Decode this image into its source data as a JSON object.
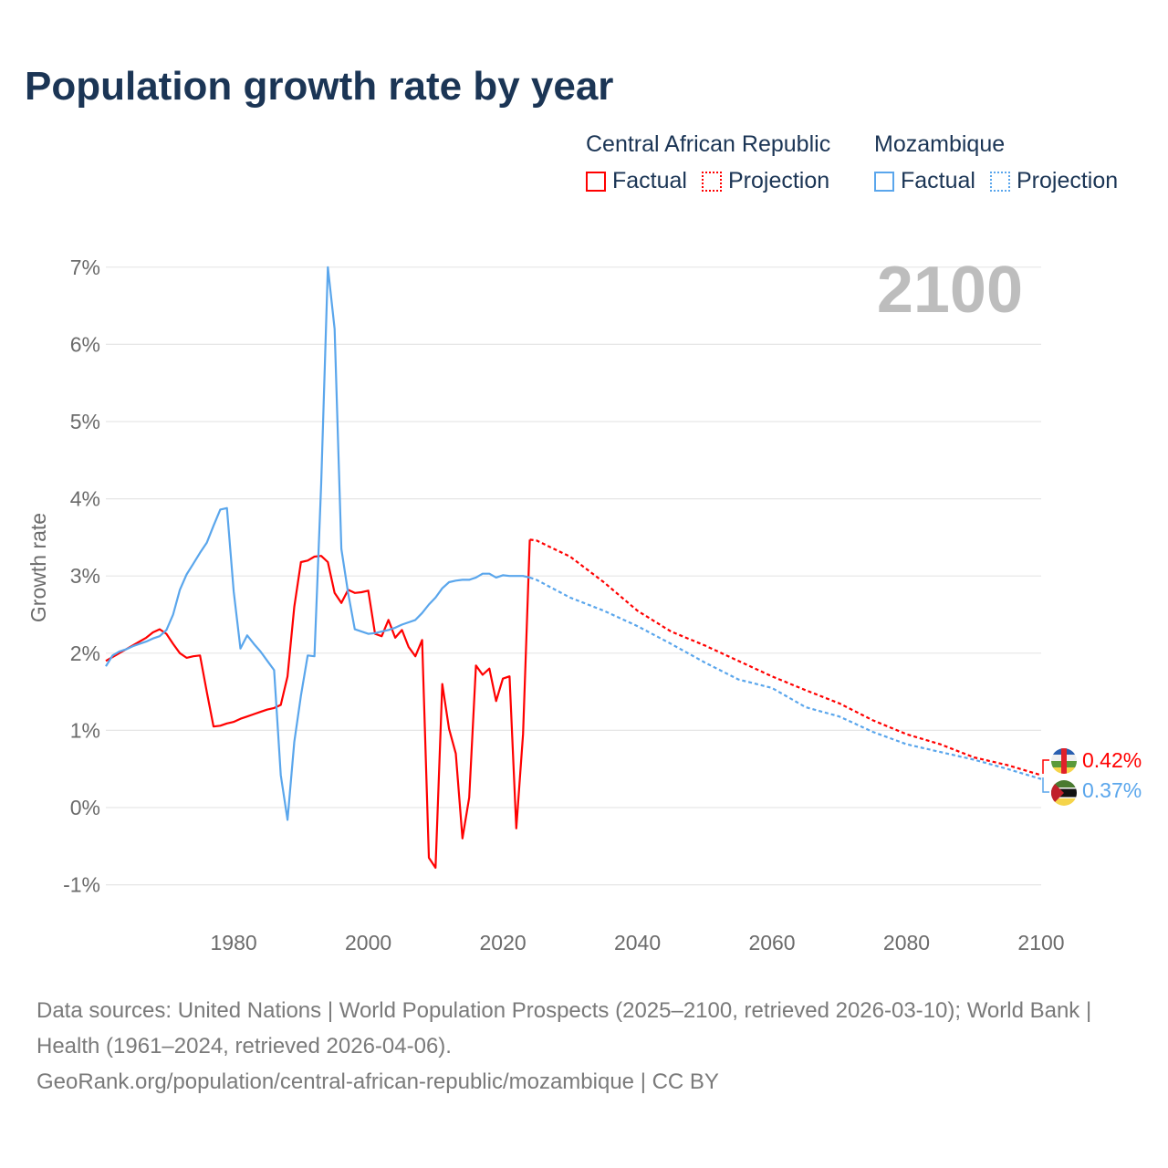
{
  "title": "Population growth rate by year",
  "legend": {
    "groups": [
      {
        "name": "Central African Republic",
        "color": "#ff0000",
        "factual": "Factual",
        "projection": "Projection"
      },
      {
        "name": "Mozambique",
        "color": "#5aa6ec",
        "factual": "Factual",
        "projection": "Projection"
      }
    ]
  },
  "year_badge": "2100",
  "end_labels": {
    "car": "0.42%",
    "moz": "0.37%"
  },
  "footer": {
    "sources": "Data sources: United Nations | World Population Prospects (2025–2100, retrieved 2026-03-10); World Bank | Health (1961–2024, retrieved 2026-04-06).",
    "link": "GeoRank.org/population/central-african-republic/mozambique | CC BY"
  },
  "chart_data": {
    "type": "line",
    "title": "Population growth rate by year",
    "xlabel": "",
    "ylabel": "Growth rate",
    "xlim": [
      1961,
      2100
    ],
    "ylim": [
      -1,
      7
    ],
    "xticks": [
      1980,
      2000,
      2020,
      2040,
      2060,
      2080,
      2100
    ],
    "xtick_labels": [
      "1980",
      "2000",
      "2020",
      "2040",
      "2060",
      "2080",
      "2100"
    ],
    "yticks": [
      -1,
      0,
      1,
      2,
      3,
      4,
      5,
      6,
      7
    ],
    "ytick_labels": [
      "-1%",
      "0%",
      "1%",
      "2%",
      "3%",
      "4%",
      "5%",
      "6%",
      "7%"
    ],
    "grid": true,
    "legend_position": "top-right",
    "series": [
      {
        "name": "Central African Republic – Factual",
        "color": "#ff0000",
        "style": "solid",
        "x": [
          1961,
          1962,
          1963,
          1964,
          1965,
          1966,
          1967,
          1968,
          1969,
          1970,
          1971,
          1972,
          1973,
          1974,
          1975,
          1976,
          1977,
          1978,
          1979,
          1980,
          1981,
          1982,
          1983,
          1984,
          1985,
          1986,
          1987,
          1988,
          1989,
          1990,
          1991,
          1992,
          1993,
          1994,
          1995,
          1996,
          1997,
          1998,
          1999,
          2000,
          2001,
          2002,
          2003,
          2004,
          2005,
          2006,
          2007,
          2008,
          2009,
          2010,
          2011,
          2012,
          2013,
          2014,
          2015,
          2016,
          2017,
          2018,
          2019,
          2020,
          2021,
          2022,
          2023,
          2024
        ],
        "y": [
          1.9,
          1.95,
          2.0,
          2.05,
          2.1,
          2.15,
          2.2,
          2.27,
          2.31,
          2.25,
          2.12,
          2.0,
          1.94,
          1.96,
          1.97,
          1.5,
          1.05,
          1.06,
          1.09,
          1.11,
          1.15,
          1.18,
          1.21,
          1.24,
          1.27,
          1.29,
          1.33,
          1.7,
          2.6,
          3.18,
          3.2,
          3.25,
          3.26,
          3.18,
          2.78,
          2.65,
          2.82,
          2.78,
          2.79,
          2.81,
          2.25,
          2.22,
          2.43,
          2.2,
          2.3,
          2.08,
          1.96,
          2.17,
          -0.65,
          -0.78,
          1.6,
          1.02,
          0.7,
          -0.4,
          0.13,
          1.84,
          1.72,
          1.8,
          1.38,
          1.67,
          1.7,
          -0.27,
          0.95,
          3.47
        ]
      },
      {
        "name": "Central African Republic – Projection",
        "color": "#ff0000",
        "style": "dotted",
        "x": [
          2024,
          2025,
          2030,
          2035,
          2040,
          2045,
          2050,
          2055,
          2060,
          2065,
          2070,
          2075,
          2080,
          2085,
          2090,
          2095,
          2100
        ],
        "y": [
          3.47,
          3.46,
          3.25,
          2.92,
          2.55,
          2.28,
          2.1,
          1.9,
          1.7,
          1.52,
          1.35,
          1.13,
          0.95,
          0.82,
          0.65,
          0.55,
          0.42
        ]
      },
      {
        "name": "Mozambique – Factual",
        "color": "#5aa6ec",
        "style": "solid",
        "x": [
          1961,
          1962,
          1963,
          1964,
          1965,
          1966,
          1967,
          1968,
          1969,
          1970,
          1971,
          1972,
          1973,
          1974,
          1975,
          1976,
          1977,
          1978,
          1979,
          1980,
          1981,
          1982,
          1983,
          1984,
          1985,
          1986,
          1987,
          1988,
          1989,
          1990,
          1991,
          1992,
          1993,
          1994,
          1995,
          1996,
          1997,
          1998,
          1999,
          2000,
          2001,
          2002,
          2003,
          2004,
          2005,
          2006,
          2007,
          2008,
          2009,
          2010,
          2011,
          2012,
          2013,
          2014,
          2015,
          2016,
          2017,
          2018,
          2019,
          2020,
          2021,
          2022,
          2023,
          2024
        ],
        "y": [
          1.83,
          1.97,
          2.02,
          2.05,
          2.09,
          2.12,
          2.15,
          2.19,
          2.22,
          2.3,
          2.5,
          2.82,
          3.02,
          3.16,
          3.3,
          3.43,
          3.65,
          3.86,
          3.88,
          2.8,
          2.06,
          2.23,
          2.12,
          2.02,
          1.9,
          1.78,
          0.42,
          -0.16,
          0.85,
          1.45,
          1.97,
          1.96,
          4.2,
          7.0,
          6.2,
          3.35,
          2.78,
          2.31,
          2.28,
          2.25,
          2.26,
          2.28,
          2.3,
          2.33,
          2.37,
          2.4,
          2.43,
          2.52,
          2.63,
          2.72,
          2.84,
          2.92,
          2.94,
          2.95,
          2.95,
          2.98,
          3.03,
          3.03,
          2.98,
          3.01,
          3.0,
          3.0,
          3.0,
          2.98
        ]
      },
      {
        "name": "Mozambique – Projection",
        "color": "#5aa6ec",
        "style": "dotted",
        "x": [
          2024,
          2025,
          2030,
          2035,
          2040,
          2045,
          2050,
          2055,
          2060,
          2065,
          2070,
          2075,
          2080,
          2085,
          2090,
          2095,
          2100
        ],
        "y": [
          2.98,
          2.95,
          2.72,
          2.55,
          2.35,
          2.12,
          1.88,
          1.66,
          1.55,
          1.3,
          1.18,
          0.98,
          0.82,
          0.72,
          0.62,
          0.5,
          0.37
        ]
      }
    ]
  }
}
